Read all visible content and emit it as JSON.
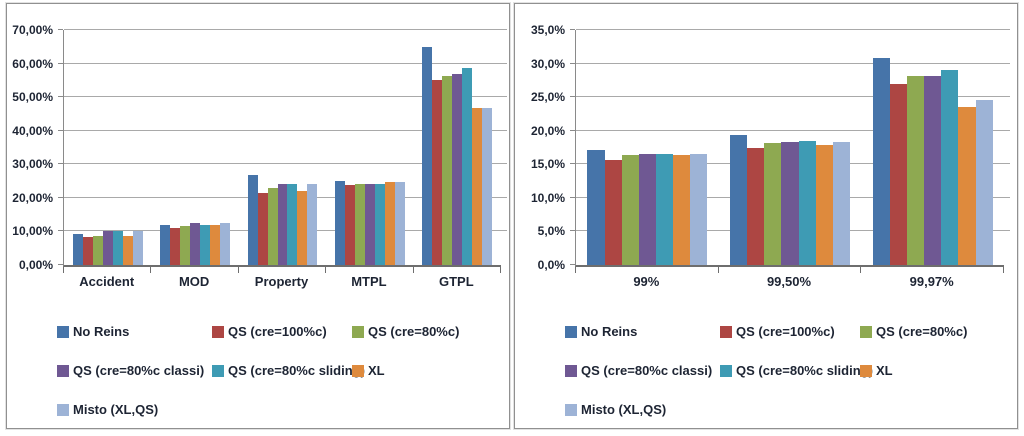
{
  "style": {
    "grid_color": "#a9a9a9",
    "axis_color": "#6e6e6e",
    "text_color": "#1d2433",
    "panel_border_color": "#909090",
    "background": "#ffffff"
  },
  "series_names": [
    "No Reins",
    "QS (cre=100%c)",
    "QS (cre=80%c)",
    "QS (cre=80%c classi)",
    "QS (cre=80%c sliding)",
    "XL",
    "Misto (XL,QS)"
  ],
  "series_colors": [
    "#4674A9",
    "#AD4643",
    "#8EA951",
    "#6F5893",
    "#3E9BB4",
    "#DE8A3D",
    "#9DB3D6"
  ],
  "chart_data": [
    {
      "type": "bar",
      "title": "",
      "xlabel": "",
      "ylabel": "",
      "categories": [
        "Accident",
        "MOD",
        "Property",
        "MTPL",
        "GTPL"
      ],
      "ylim": [
        0,
        70
      ],
      "grid": true,
      "legend_position": "bottom",
      "group_width_pct": 80,
      "yticks": [
        {
          "v": 0,
          "label": "0,00%"
        },
        {
          "v": 10,
          "label": "10,00%"
        },
        {
          "v": 20,
          "label": "20,00%"
        },
        {
          "v": 30,
          "label": "30,00%"
        },
        {
          "v": 40,
          "label": "40,00%"
        },
        {
          "v": 50,
          "label": "50,00%"
        },
        {
          "v": 60,
          "label": "60,00%"
        },
        {
          "v": 70,
          "label": "70,00%"
        }
      ],
      "series": [
        {
          "name": "No Reins",
          "color": "#4674A9",
          "values": [
            9.3,
            12.0,
            26.8,
            25.1,
            65.0
          ]
        },
        {
          "name": "QS (cre=100%c)",
          "color": "#AD4643",
          "values": [
            8.2,
            11.0,
            21.5,
            23.7,
            55.2
          ]
        },
        {
          "name": "QS (cre=80%c)",
          "color": "#8EA951",
          "values": [
            8.7,
            11.5,
            22.8,
            24.2,
            56.2
          ]
        },
        {
          "name": "QS (cre=80%c classi)",
          "color": "#6F5893",
          "values": [
            10.1,
            12.5,
            24.2,
            24.2,
            57.0
          ]
        },
        {
          "name": "QS (cre=80%c sliding)",
          "color": "#3E9BB4",
          "values": [
            10.1,
            12.0,
            24.2,
            24.2,
            58.6
          ]
        },
        {
          "name": "XL",
          "color": "#DE8A3D",
          "values": [
            8.6,
            12.0,
            21.9,
            24.6,
            46.8
          ]
        },
        {
          "name": "Misto (XL,QS)",
          "color": "#9DB3D6",
          "values": [
            10.2,
            12.4,
            24.2,
            24.6,
            46.9
          ]
        }
      ]
    },
    {
      "type": "bar",
      "title": "",
      "xlabel": "",
      "ylabel": "",
      "categories": [
        "99%",
        "99,50%",
        "99,97%"
      ],
      "ylim": [
        0,
        35
      ],
      "grid": true,
      "legend_position": "bottom",
      "group_width_pct": 84,
      "yticks": [
        {
          "v": 0,
          "label": "0,0%"
        },
        {
          "v": 5,
          "label": "5,0%"
        },
        {
          "v": 10,
          "label": "10,0%"
        },
        {
          "v": 15,
          "label": "15,0%"
        },
        {
          "v": 20,
          "label": "20,0%"
        },
        {
          "v": 25,
          "label": "25,0%"
        },
        {
          "v": 30,
          "label": "30,0%"
        },
        {
          "v": 35,
          "label": "35,0%"
        }
      ],
      "series": [
        {
          "name": "No Reins",
          "color": "#4674A9",
          "values": [
            17.2,
            19.3,
            30.8
          ]
        },
        {
          "name": "QS (cre=100%c)",
          "color": "#AD4643",
          "values": [
            15.6,
            17.5,
            26.9
          ]
        },
        {
          "name": "QS (cre=80%c)",
          "color": "#8EA951",
          "values": [
            16.4,
            18.1,
            28.2
          ]
        },
        {
          "name": "QS (cre=80%c classi)",
          "color": "#6F5893",
          "values": [
            16.6,
            18.3,
            28.2
          ]
        },
        {
          "name": "QS (cre=80%c sliding)",
          "color": "#3E9BB4",
          "values": [
            16.5,
            18.5,
            29.1
          ]
        },
        {
          "name": "XL",
          "color": "#DE8A3D",
          "values": [
            16.4,
            17.9,
            23.5
          ]
        },
        {
          "name": "Misto (XL,QS)",
          "color": "#9DB3D6",
          "values": [
            16.6,
            18.3,
            24.6
          ]
        }
      ]
    }
  ]
}
